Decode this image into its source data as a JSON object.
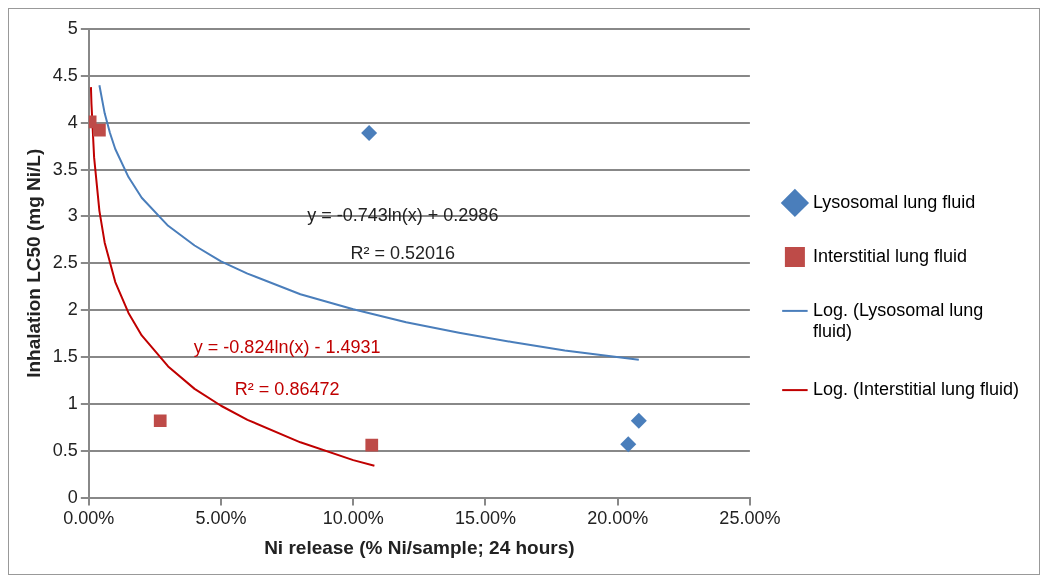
{
  "chart_data": {
    "type": "scatter",
    "xlabel": "Ni release (% Ni/sample; 24 hours)",
    "ylabel": "Inhalation LC50 (mg Ni/L)",
    "xlim": [
      0,
      25
    ],
    "xticks": [
      {
        "value": 0,
        "label": "0.00%"
      },
      {
        "value": 5,
        "label": "5.00%"
      },
      {
        "value": 10,
        "label": "10.00%"
      },
      {
        "value": 15,
        "label": "15.00%"
      },
      {
        "value": 20,
        "label": "20.00%"
      },
      {
        "value": 25,
        "label": "25.00%"
      }
    ],
    "ylim": [
      0,
      5
    ],
    "yticks": [
      0,
      0.5,
      1,
      1.5,
      2,
      2.5,
      3,
      3.5,
      4,
      4.5,
      5
    ],
    "grid": "y",
    "legend": "right",
    "series": [
      {
        "name": "Lysosomal lung fluid",
        "marker": "diamond",
        "color": "#4a7ebb",
        "x": [
          10.6,
          20.4,
          20.8
        ],
        "values": [
          3.89,
          0.57,
          0.82
        ]
      },
      {
        "name": "Interstitial lung fluid",
        "marker": "square",
        "color": "#be4b48",
        "x": [
          0.05,
          0.4,
          2.7,
          10.7
        ],
        "values": [
          4.01,
          3.92,
          0.82,
          0.56
        ]
      },
      {
        "name": "Log. (Lysosomal lung fluid)",
        "type": "line",
        "marker": "none",
        "color": "#4a7ebb",
        "x": [
          0.4,
          0.6,
          0.8,
          1,
          1.5,
          2,
          3,
          4,
          5,
          6,
          8,
          10,
          12,
          14,
          16,
          18,
          20.8
        ],
        "values": [
          4.4,
          4.1,
          3.89,
          3.72,
          3.42,
          3.2,
          2.9,
          2.69,
          2.52,
          2.39,
          2.17,
          2.01,
          1.87,
          1.76,
          1.66,
          1.57,
          1.47
        ]
      },
      {
        "name": "Log. (Interstitial lung fluid)",
        "type": "line",
        "marker": "none",
        "color": "#c00000",
        "x": [
          0.08,
          0.1,
          0.2,
          0.4,
          0.6,
          1,
          1.5,
          2,
          3,
          4,
          5,
          6,
          8,
          10,
          10.8
        ],
        "values": [
          4.38,
          4.2,
          3.63,
          3.06,
          2.72,
          2.3,
          1.97,
          1.73,
          1.4,
          1.16,
          0.98,
          0.83,
          0.59,
          0.4,
          0.34
        ]
      }
    ],
    "annotations": [
      "y = -0.743ln(x) + 0.2986",
      "R² = 0.52016",
      "y = -0.824ln(x) - 1.4931",
      "R² = 0.86472"
    ]
  }
}
